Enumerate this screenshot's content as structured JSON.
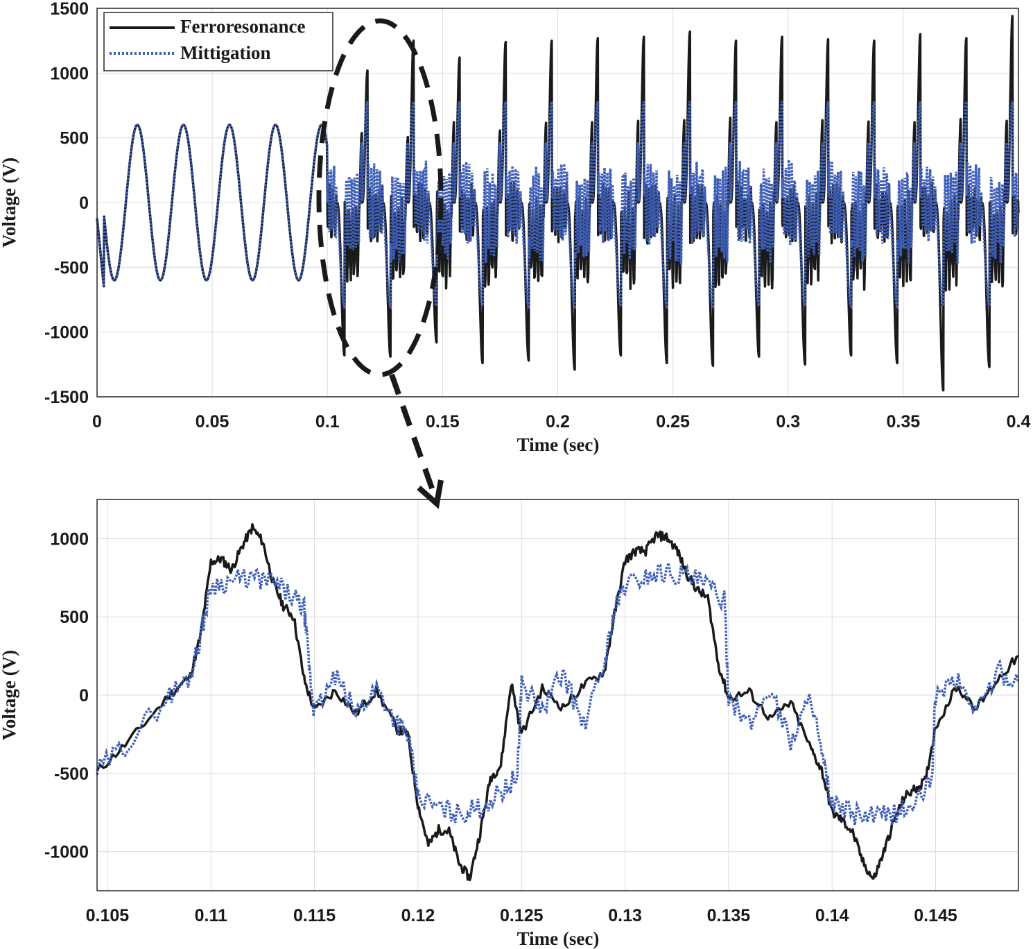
{
  "chart_data": [
    {
      "type": "line",
      "title": "",
      "xlabel": "Time (sec)",
      "ylabel": "Voltage (V)",
      "xlim": [
        0,
        0.4
      ],
      "ylim": [
        -1500,
        1500
      ],
      "xticks": [
        0,
        0.05,
        0.1,
        0.15,
        0.2,
        0.25,
        0.3,
        0.35,
        0.4
      ],
      "xtick_labels": [
        "0",
        "0.05",
        "0.1",
        "0.15",
        "0.2",
        "0.25",
        "0.3",
        "0.35",
        "0.4"
      ],
      "yticks": [
        -1500,
        -1000,
        -500,
        0,
        500,
        1000,
        1500
      ],
      "ytick_labels": [
        "-1500",
        "-1000",
        "-500",
        "0",
        "500",
        "1000",
        "1500"
      ],
      "grid": true,
      "legend": {
        "placement": "top-left",
        "entries": [
          "Ferroresonance",
          "Mittigation"
        ]
      },
      "series": [
        {
          "name": "Ferroresonance",
          "style": "solid",
          "color": "#1a1a1a",
          "description_values": {
            "steady_amplitude_before_0_1s": 600,
            "positive_peaks_after_0_1s": [
              1080,
              1020,
              1250,
              1120,
              1240,
              1250,
              1270,
              1280,
              1320,
              1250,
              1280,
              1260,
              1250,
              1300,
              1270,
              1440
            ],
            "negative_peaks_after_0_1s": [
              -1180,
              -1190,
              -1080,
              -1240,
              -1220,
              -1290,
              -1180,
              -1240,
              -1260,
              -1190,
              -1250,
              -1180,
              -1240,
              -1450,
              -1270
            ]
          }
        },
        {
          "name": "Mittigation",
          "style": "dotted",
          "color": "#3f5fb7",
          "description_values": {
            "steady_amplitude_before_0_1s": 600,
            "clamped_peak": 780,
            "clamped_trough": -800
          }
        }
      ],
      "annotations": [
        "dashed ellipse around t = 0.105–0.145 s with dashed arrow to the zoomed plot"
      ]
    },
    {
      "type": "line",
      "title": "",
      "xlabel": "Time (sec)",
      "ylabel": "Voltage (V)",
      "xlim": [
        0.1045,
        0.149
      ],
      "ylim": [
        -1250,
        1250
      ],
      "xticks": [
        0.105,
        0.11,
        0.115,
        0.12,
        0.125,
        0.13,
        0.135,
        0.14,
        0.145
      ],
      "xtick_labels": [
        "0.105",
        "0.11",
        "0.115",
        "0.12",
        "0.125",
        "0.13",
        "0.135",
        "0.14",
        "0.145"
      ],
      "yticks": [
        -1000,
        -500,
        0,
        500,
        1000
      ],
      "ytick_labels": [
        "-1000",
        "-500",
        "0",
        "500",
        "1000"
      ],
      "grid": true,
      "series": [
        {
          "name": "Ferroresonance",
          "style": "solid",
          "color": "#1a1a1a",
          "x": [
            0.1045,
            0.106,
            0.108,
            0.109,
            0.1095,
            0.11,
            0.1105,
            0.111,
            0.1115,
            0.112,
            0.1125,
            0.113,
            0.1135,
            0.114,
            0.1145,
            0.115,
            0.116,
            0.117,
            0.118,
            0.119,
            0.1195,
            0.12,
            0.1205,
            0.121,
            0.1215,
            0.122,
            0.1225,
            0.123,
            0.1235,
            0.124,
            0.1245,
            0.125,
            0.126,
            0.127,
            0.128,
            0.129,
            0.1295,
            0.13,
            0.1305,
            0.131,
            0.1315,
            0.132,
            0.1325,
            0.133,
            0.1335,
            0.134,
            0.1345,
            0.135,
            0.136,
            0.137,
            0.138,
            0.139,
            0.1395,
            0.14,
            0.1405,
            0.141,
            0.1415,
            0.142,
            0.1425,
            0.143,
            0.1435,
            0.144,
            0.1445,
            0.145,
            0.146,
            0.147,
            0.148,
            0.149
          ],
          "y": [
            -490,
            -300,
            0,
            120,
            380,
            850,
            870,
            800,
            950,
            1070,
            980,
            720,
            570,
            500,
            100,
            -100,
            30,
            -120,
            30,
            -220,
            -250,
            -700,
            -960,
            -860,
            -870,
            -1080,
            -1170,
            -880,
            -530,
            -450,
            80,
            -250,
            40,
            -80,
            60,
            150,
            520,
            860,
            920,
            920,
            1020,
            1010,
            930,
            770,
            670,
            620,
            200,
            -20,
            20,
            -150,
            -50,
            -350,
            -480,
            -750,
            -800,
            -880,
            -1070,
            -1180,
            -1000,
            -800,
            -650,
            -600,
            -550,
            -200,
            50,
            -80,
            100,
            250
          ]
        },
        {
          "name": "Mittigation",
          "style": "dotted",
          "color": "#3f5fb7",
          "x": [
            0.1045,
            0.106,
            0.108,
            0.109,
            0.1095,
            0.11,
            0.111,
            0.112,
            0.113,
            0.114,
            0.1145,
            0.1148,
            0.115,
            0.116,
            0.117,
            0.118,
            0.119,
            0.1195,
            0.12,
            0.121,
            0.122,
            0.123,
            0.124,
            0.1248,
            0.125,
            0.126,
            0.127,
            0.128,
            0.129,
            0.1295,
            0.13,
            0.131,
            0.132,
            0.133,
            0.134,
            0.1348,
            0.135,
            0.136,
            0.137,
            0.138,
            0.139,
            0.1395,
            0.14,
            0.141,
            0.142,
            0.143,
            0.144,
            0.1448,
            0.145,
            0.146,
            0.147,
            0.148,
            0.149
          ],
          "y": [
            -490,
            -300,
            0,
            120,
            380,
            700,
            730,
            750,
            720,
            620,
            550,
            100,
            -120,
            120,
            -120,
            50,
            -180,
            -250,
            -650,
            -720,
            -760,
            -720,
            -620,
            -520,
            80,
            -100,
            150,
            -200,
            200,
            550,
            700,
            760,
            790,
            760,
            700,
            600,
            0,
            -200,
            50,
            -300,
            0,
            -400,
            -700,
            -760,
            -780,
            -760,
            -700,
            -550,
            0,
            100,
            -100,
            150,
            80
          ]
        }
      ]
    }
  ]
}
